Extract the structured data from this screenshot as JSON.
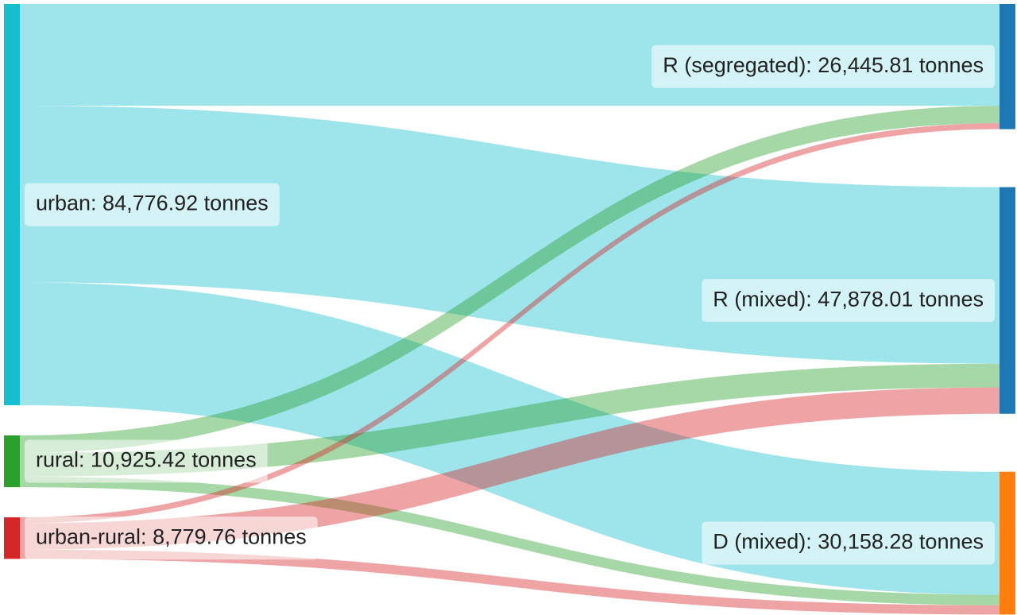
{
  "chart_data": {
    "type": "sankey",
    "nodes": [
      {
        "label": "urban: 84,776.92 tonnes",
        "value": 84776.92,
        "color": "#17becf",
        "column": 0
      },
      {
        "label": "rural: 10,925.42 tonnes",
        "value": 10925.42,
        "color": "#2ca02c",
        "column": 0
      },
      {
        "label": "urban-rural: 8,779.76 tonnes",
        "value": 8779.76,
        "color": "#d62728",
        "column": 0
      },
      {
        "label": "R (segregated): 26,445.81 tonnes",
        "value": 26445.81,
        "color": "#1f77b4",
        "column": 1
      },
      {
        "label": "R (mixed): 47,878.01 tonnes",
        "value": 47878.01,
        "color": "#1f77b4",
        "column": 1
      },
      {
        "label": "D (mixed): 30,158.28 tonnes",
        "value": 30158.28,
        "color": "#ff7f0e",
        "column": 1
      }
    ],
    "links": [
      {
        "source": 0,
        "target": 3,
        "value": 21500
      },
      {
        "source": 0,
        "target": 4,
        "value": 37300
      },
      {
        "source": 0,
        "target": 5,
        "value": 25976.92
      },
      {
        "source": 1,
        "target": 3,
        "value": 3700
      },
      {
        "source": 1,
        "target": 4,
        "value": 5000
      },
      {
        "source": 1,
        "target": 5,
        "value": 2225.42
      },
      {
        "source": 2,
        "target": 3,
        "value": 1245.81
      },
      {
        "source": 2,
        "target": 4,
        "value": 5578.01
      },
      {
        "source": 2,
        "target": 5,
        "value": 1955.94
      }
    ]
  }
}
